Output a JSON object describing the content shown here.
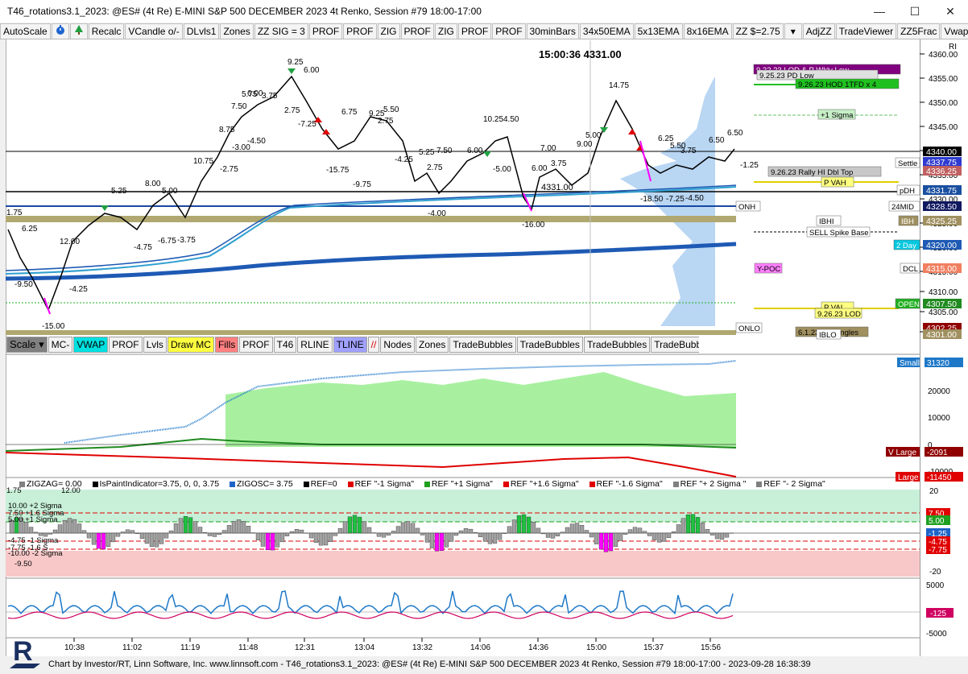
{
  "window": {
    "title": "T46_rotations3.1_2023: @ES# (4t Re) E-MINI S&P 500 DECEMBER 2023 4t Renko, Session #79 18:00-17:00",
    "minimize": "—",
    "maximize": "☐",
    "close": "✕"
  },
  "toolbar": {
    "items": [
      "AutoScale",
      "Recalc",
      "VCandle o/-",
      "DLvls1",
      "Zones",
      "ZZ SIG = 3",
      "PROF",
      "PROF",
      "ZIG",
      "PROF",
      "ZIG",
      "PROF",
      "PROF",
      "30minBars",
      "34x50EMA",
      "5x13EMA",
      "8x16EMA",
      "ZZ $=2.75",
      "AdjZZ",
      "TradeViewer",
      "ZZ5Frac",
      "Vwap- St"
    ],
    "icons": [
      "timer-icon",
      "tree-icon"
    ],
    "dropdown": "▾"
  },
  "clock": "15:00:36  4331.00",
  "price_axis": {
    "label_RI": "RI",
    "ticks": [
      "4360.00",
      "4355.00",
      "4350.00",
      "4345.00",
      "4340.00",
      "4335.00",
      "4330.00",
      "4325.00",
      "4320.00",
      "4315.00",
      "4310.00",
      "4305.00",
      "4300.00"
    ],
    "tags": [
      {
        "text": "4340.00",
        "color": "#000000",
        "fg": "#ffffff"
      },
      {
        "text": "4337.75",
        "color": "#2e3bd0",
        "fg": "#ffffff"
      },
      {
        "text": "4336.25",
        "color": "#c06060",
        "fg": "#ffffff"
      },
      {
        "text": "4331.75",
        "color": "#1a4fa0",
        "fg": "#ffffff"
      },
      {
        "text": "4328.50",
        "color": "#101860",
        "fg": "#ffffff"
      },
      {
        "text": "4325.25",
        "color": "#a09060",
        "fg": "#ffffff"
      },
      {
        "text": "4320.00",
        "color": "#1e5ab4",
        "fg": "#ffffff"
      },
      {
        "text": "4315.00",
        "color": "#f08060",
        "fg": "#ffffff"
      },
      {
        "text": "4307.50",
        "color": "#208a20",
        "fg": "#ffffff"
      },
      {
        "text": "4302.25",
        "color": "#900000",
        "fg": "#ffffff"
      },
      {
        "text": "4301.00",
        "color": "#a09060",
        "fg": "#ffffff"
      }
    ]
  },
  "levels": [
    {
      "text": "9.22.23 LOD & P Wkly Low",
      "color": "#800080",
      "fg": "#ffffff"
    },
    {
      "text": "9.25.23 PD Low",
      "color": "#e0e0e0",
      "fg": "#000000"
    },
    {
      "text": "9.26.23 HOD 1TFD x 4",
      "color": "#20c020",
      "fg": "#000000"
    },
    {
      "text": "+1 Sigma",
      "color": "#c8f0c8",
      "fg": "#000000"
    },
    {
      "text": "Settle",
      "color": "#ffffff",
      "fg": "#000000"
    },
    {
      "text": "9.26.23 Rally HI Dbl Top",
      "color": "#c8c8c8",
      "fg": "#000000"
    },
    {
      "text": "P VAH",
      "color": "#ffff80",
      "fg": "#000000"
    },
    {
      "text": "pDH",
      "color": "#ffffff",
      "fg": "#000000"
    },
    {
      "text": "24MID",
      "color": "#ffffff",
      "fg": "#000000"
    },
    {
      "text": "ONH",
      "color": "#ffffff",
      "fg": "#000000"
    },
    {
      "text": "IBHI",
      "color": "#ffffff",
      "fg": "#000000"
    },
    {
      "text": "IBH",
      "color": "#a09060",
      "fg": "#ffffff"
    },
    {
      "text": "SELL Spike Base",
      "color": "#ffffff",
      "fg": "#000000"
    },
    {
      "text": "2 Day",
      "color": "#00c8e0",
      "fg": "#ffffff"
    },
    {
      "text": "Y-POC",
      "color": "#ff80ff",
      "fg": "#000000"
    },
    {
      "text": "DCL",
      "color": "#ffffff",
      "fg": "#000000"
    },
    {
      "text": "OPEN",
      "color": "#20b020",
      "fg": "#ffffff"
    },
    {
      "text": "P VAL",
      "color": "#ffff80",
      "fg": "#000000"
    },
    {
      "text": "9.26.23 LOD",
      "color": "#ffff80",
      "fg": "#000000"
    },
    {
      "text": "ONLO",
      "color": "#ffffff",
      "fg": "#000000"
    },
    {
      "text": "6.1.23 Up Singles",
      "color": "#a09060",
      "fg": "#000000"
    },
    {
      "text": "IBLO",
      "color": "#ffffff",
      "fg": "#000000"
    }
  ],
  "price_annotations": [
    "9.25",
    "6.00",
    "5.75",
    "3.75",
    "6.00",
    "7.50",
    "2.75",
    "8.75",
    "-3.00",
    "-4.50",
    "-7.25",
    "10.75",
    "-2.75",
    "6.75",
    "9.25",
    "5.50",
    "2.75",
    "-15.75",
    "-9.75",
    "5.25",
    "7.50",
    "-4.25",
    "2.75",
    "6.00",
    "-5.00",
    "10.25",
    "4.50",
    "6.00",
    "3.75",
    "7.00",
    "9.00",
    "5.00",
    "14.75",
    "6.25",
    "5.50",
    "3.75",
    "6.50",
    "6.50",
    "-1.25",
    "-18.50",
    "-7.25",
    "-4.50",
    "-16.00",
    "-4.00",
    "-15.00",
    "-9.50",
    "-4.25",
    "12.00",
    "1.75",
    "6.25",
    "5.25",
    "8.00",
    "5.00",
    "-6.75",
    "-3.75",
    "-4.75",
    "4331.00"
  ],
  "toolbar2": {
    "items": [
      "Scale",
      "MC-",
      "VWAP",
      "PROF",
      "Lvls",
      "Draw MC",
      "Fills",
      "PROF",
      "T46",
      "RLINE",
      "TLINE",
      "Nodes",
      "Zones",
      "TradeBubbles",
      "TradeBubbles",
      "TradeBubbles",
      "TradeBubbles"
    ],
    "colors": [
      "#808080",
      "#f2f2f2",
      "#00e0e0",
      "#f2f2f2",
      "#f2f2f2",
      "#ffff40",
      "#ff8080",
      "#f2f2f2",
      "#f2f2f2",
      "#f2f2f2",
      "#a0a0ff",
      "#f2f2f2",
      "#f2f2f2",
      "#f2f2f2",
      "#f2f2f2",
      "#f2f2f2",
      "#f2f2f2"
    ],
    "slash_icon": "line-tool-icon"
  },
  "panel2": {
    "ticks": [
      "20000",
      "10000",
      "0",
      "-10000"
    ],
    "tags": [
      {
        "text": "Small",
        "color": "#1e78c8",
        "fg": "#ffffff"
      },
      {
        "text": "31320",
        "color": "#1e78c8",
        "fg": "#ffffff"
      },
      {
        "text": "V Large",
        "color": "#900000",
        "fg": "#ffffff"
      },
      {
        "text": "-2091",
        "color": "#900000",
        "fg": "#ffffff"
      },
      {
        "text": "Large",
        "color": "#e00000",
        "fg": "#ffffff"
      },
      {
        "text": "-11450",
        "color": "#e00000",
        "fg": "#ffffff"
      }
    ]
  },
  "panel3": {
    "legend": [
      {
        "text": "ZIGZAG= 0.00",
        "color": "#808080"
      },
      {
        "text": "IsPaintIndicator=3.75, 0, 0, 3.75",
        "color": "#000000"
      },
      {
        "text": "ZIGOSC= 3.75",
        "color": "#1e64c8"
      },
      {
        "text": "REF=0",
        "color": "#000000"
      },
      {
        "text": "REF \"-1 Sigma\"",
        "color": "#e00000"
      },
      {
        "text": "REF \"+1 Sigma\"",
        "color": "#20a020"
      },
      {
        "text": "REF \"+1.6 Sigma\"",
        "color": "#e00000"
      },
      {
        "text": "REF \"-1.6 Sigma\"",
        "color": "#e00000"
      },
      {
        "text": "REF \"+ 2 Sigma \"",
        "color": "#808080"
      },
      {
        "text": "REF \"- 2 Sigma\"",
        "color": "#808080"
      }
    ],
    "left_labels": [
      "1.75",
      "10.00 +2 Sigma",
      "7.50 +1.6 Sigma",
      "5.00 +1 Sigma",
      "-4.75 -1 Sigma",
      "-7.75 -1.6 S",
      "-10.00 -2 Sigma",
      "-9.50",
      "12.00"
    ],
    "ticks": [
      "20",
      "-20"
    ],
    "tags": [
      {
        "text": "7.50",
        "color": "#e00000",
        "fg": "#ffffff"
      },
      {
        "text": "5.00",
        "color": "#20a020",
        "fg": "#ffffff"
      },
      {
        "text": "-1.25",
        "color": "#1e64c8",
        "fg": "#ffffff"
      },
      {
        "text": "-4.75",
        "color": "#e00000",
        "fg": "#ffffff"
      },
      {
        "text": "-7.75",
        "color": "#e00000",
        "fg": "#ffffff"
      }
    ]
  },
  "panel4": {
    "ticks": [
      "5000",
      "-5000"
    ],
    "tags": [
      {
        "text": "-125",
        "color": "#d00060",
        "fg": "#ffffff"
      }
    ]
  },
  "time_axis": [
    "10:38",
    "11:02",
    "11:19",
    "11:48",
    "12:31",
    "13:04",
    "13:32",
    "14:06",
    "14:36",
    "15:00",
    "15:37",
    "15:56"
  ],
  "footer": "Chart by Investor/RT, Linn Software, Inc. www.linnsoft.com - T46_rotations3.1_2023: @ES# (4t Re) E-MINI S&P 500 DECEMBER 2023 4t Renko, Session #79 18:00-17:00 - 2023-09-28 16:38:39",
  "logo_letter": "R"
}
